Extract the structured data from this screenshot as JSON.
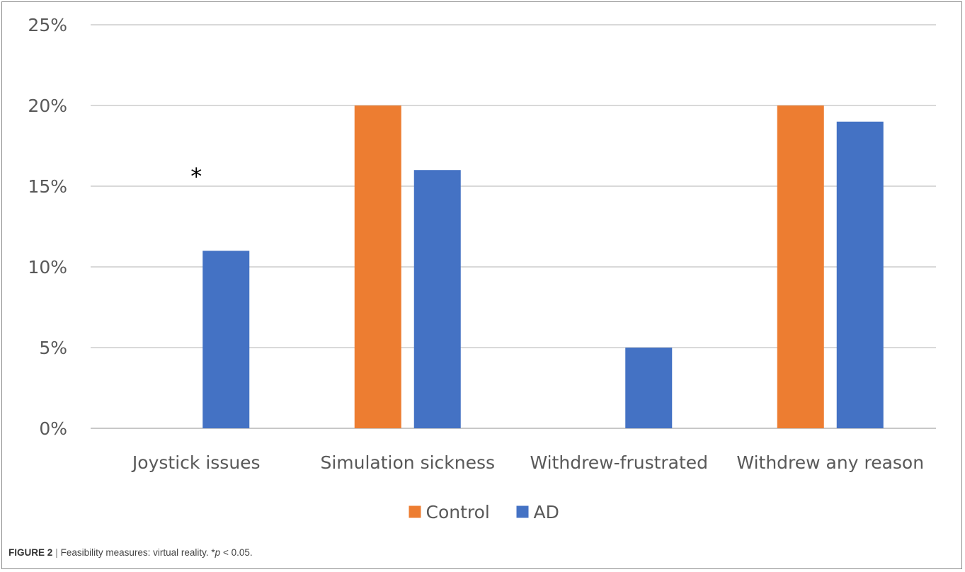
{
  "caption": {
    "label": "FIGURE 2",
    "separator": "|",
    "text_main": "Feasibility measures: virtual reality. ",
    "text_star": "*",
    "text_p": "p",
    "text_tail": " < 0.05."
  },
  "chart_data": {
    "type": "bar",
    "title": "",
    "xlabel": "",
    "ylabel": "",
    "categories": [
      "Joystick issues",
      "Simulation sickness",
      "Withdrew-frustrated",
      "Withdrew any reason"
    ],
    "series": [
      {
        "name": "Control",
        "color": "#ED7D31",
        "values": [
          0,
          20,
          0,
          20
        ]
      },
      {
        "name": "AD",
        "color": "#4472C4",
        "values": [
          11,
          16,
          5,
          19
        ]
      }
    ],
    "ylim": [
      0,
      25
    ],
    "yticks": [
      0,
      5,
      10,
      15,
      20,
      25
    ],
    "ytick_format": "percent",
    "grid": true,
    "legend_position": "bottom",
    "annotations": [
      {
        "category": "Joystick issues",
        "text": "*",
        "value": 16
      }
    ]
  }
}
